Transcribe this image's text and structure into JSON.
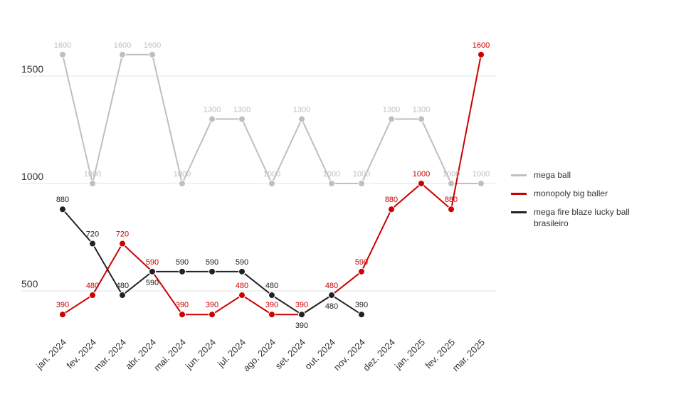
{
  "chart_data": {
    "type": "line",
    "categories": [
      "jan. 2024",
      "fev. 2024",
      "mar. 2024",
      "abr. 2024",
      "mai. 2024",
      "jun. 2024",
      "jul. 2024",
      "ago. 2024",
      "set. 2024",
      "out. 2024",
      "nov. 2024",
      "dez. 2024",
      "jan. 2025",
      "fev. 2025",
      "mar. 2025"
    ],
    "series": [
      {
        "name": "mega ball",
        "color": "#bfbfbf",
        "values": [
          1600,
          1000,
          1600,
          1600,
          1000,
          1300,
          1300,
          1000,
          1300,
          1000,
          1000,
          1300,
          1300,
          1000,
          1000
        ]
      },
      {
        "name": "monopoly big baller",
        "color": "#cc0000",
        "values": [
          390,
          480,
          720,
          590,
          390,
          390,
          480,
          390,
          390,
          480,
          590,
          880,
          1000,
          880,
          1600
        ]
      },
      {
        "name": "mega fire blaze lucky ball brasileiro",
        "color": "#222222",
        "values": [
          880,
          720,
          480,
          590,
          590,
          590,
          590,
          480,
          390,
          480,
          390,
          null,
          null,
          null,
          null
        ]
      }
    ],
    "ylim": [
      300,
      1700
    ],
    "yticks": [
      500,
      1000,
      1500
    ],
    "grid": true,
    "legend": "right"
  }
}
